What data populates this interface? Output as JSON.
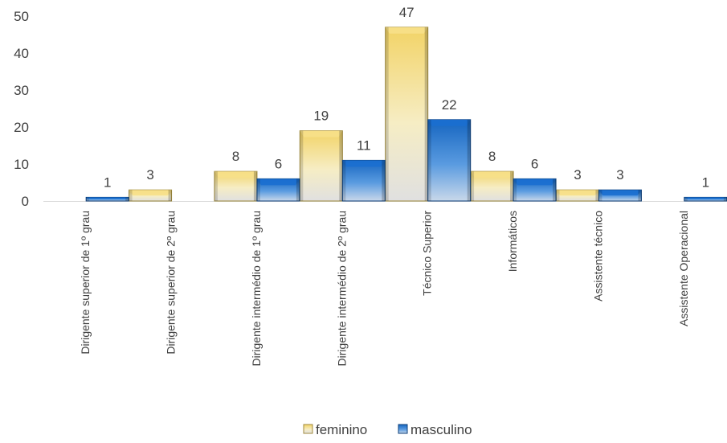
{
  "chart_data": {
    "type": "bar",
    "categories": [
      "Dirigente superior de 1º grau",
      "Dirigente superior de 2º grau",
      "Dirigente intermédio de 1º grau",
      "Dirigente intermédio de 2º grau",
      "Técnico Superior",
      "Informáticos",
      "Assistente técnico",
      "Assistente Operacional"
    ],
    "series": [
      {
        "name": "feminino",
        "values": [
          null,
          3,
          8,
          19,
          47,
          8,
          3,
          null
        ],
        "color": "#F2D675"
      },
      {
        "name": "masculino",
        "values": [
          1,
          null,
          6,
          11,
          22,
          6,
          3,
          1
        ],
        "color": "#1F6FC0"
      }
    ],
    "ylim": [
      0,
      50
    ],
    "yticks": [
      0,
      10,
      20,
      30,
      40,
      50
    ],
    "grid": false,
    "legend": "bottom"
  }
}
